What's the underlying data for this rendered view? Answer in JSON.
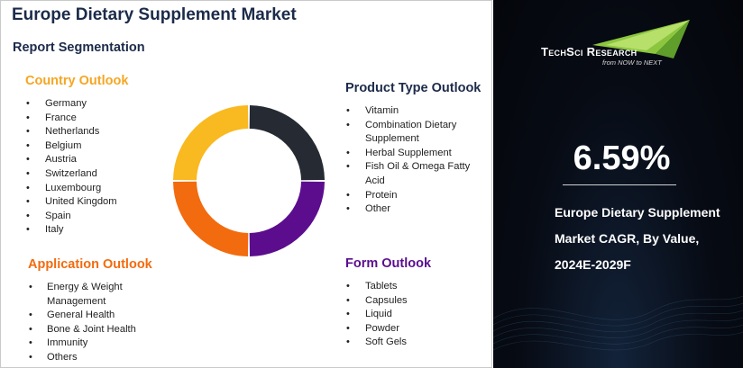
{
  "title": "Europe Dietary Supplement Market",
  "subtitle": "Report Segmentation",
  "segments": {
    "country": {
      "heading": "Country Outlook",
      "color": "#F5A623",
      "items": [
        "Germany",
        "France",
        "Netherlands",
        "Belgium",
        "Austria",
        "Switzerland",
        "Luxembourg",
        "United Kingdom",
        "Spain",
        "Italy"
      ]
    },
    "product": {
      "heading": "Product Type Outlook",
      "color": "#1C2B4A",
      "items": [
        "Vitamin",
        "Combination Dietary Supplement",
        "Herbal Supplement",
        "Fish Oil & Omega Fatty Acid",
        "Protein",
        "Other"
      ]
    },
    "application": {
      "heading": "Application Outlook",
      "color": "#F26B0F",
      "items": [
        "Energy & Weight Management",
        "General Health",
        "Bone & Joint Health",
        "Immunity",
        "Others"
      ]
    },
    "form": {
      "heading": "Form Outlook",
      "color": "#5B0D8E",
      "items": [
        "Tablets",
        "Capsules",
        "Liquid",
        "Powder",
        "Soft Gels"
      ]
    }
  },
  "donut_colors": [
    "#252A33",
    "#5B0D8E",
    "#F26B0F",
    "#F9B920"
  ],
  "brand": {
    "name": "TechSci Research",
    "tagline": "from NOW to NEXT",
    "icon": "techsci-swoosh-logo",
    "accent": "#8CC63F"
  },
  "cagr": {
    "value": "6.59%",
    "label": "Europe Dietary Supplement Market CAGR, By Value, 2024E-2029F"
  }
}
